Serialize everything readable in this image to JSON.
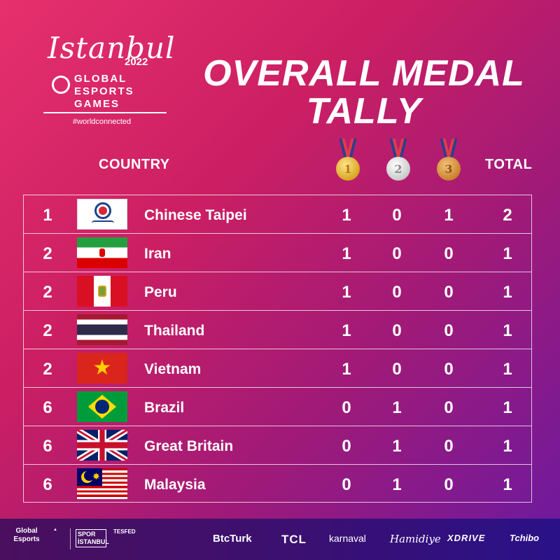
{
  "logo": {
    "script": "Istanbul",
    "year": "2022",
    "line1": "GLOBAL",
    "line2": "ESPORTS",
    "line3": "GAMES",
    "hashtag": "#worldconnected"
  },
  "title": {
    "line1": "OVERALL MEDAL",
    "line2": "TALLY"
  },
  "headers": {
    "country": "COUNTRY",
    "gold_icon": "gold-medal-icon",
    "silver_icon": "silver-medal-icon",
    "bronze_icon": "bronze-medal-icon",
    "gold_numeral": "1",
    "silver_numeral": "2",
    "bronze_numeral": "3",
    "total": "TOTAL"
  },
  "rows": [
    {
      "rank": "1",
      "flag": "chinese-taipei-flag",
      "country": "Chinese Taipei",
      "gold": "1",
      "silver": "0",
      "bronze": "1",
      "total": "2"
    },
    {
      "rank": "2",
      "flag": "iran-flag",
      "country": "Iran",
      "gold": "1",
      "silver": "0",
      "bronze": "0",
      "total": "1"
    },
    {
      "rank": "2",
      "flag": "peru-flag",
      "country": "Peru",
      "gold": "1",
      "silver": "0",
      "bronze": "0",
      "total": "1"
    },
    {
      "rank": "2",
      "flag": "thailand-flag",
      "country": "Thailand",
      "gold": "1",
      "silver": "0",
      "bronze": "0",
      "total": "1"
    },
    {
      "rank": "2",
      "flag": "vietnam-flag",
      "country": "Vietnam",
      "gold": "1",
      "silver": "0",
      "bronze": "0",
      "total": "1"
    },
    {
      "rank": "6",
      "flag": "brazil-flag",
      "country": "Brazil",
      "gold": "0",
      "silver": "1",
      "bronze": "0",
      "total": "1"
    },
    {
      "rank": "6",
      "flag": "great-britain-flag",
      "country": "Great Britain",
      "gold": "0",
      "silver": "1",
      "bronze": "0",
      "total": "1"
    },
    {
      "rank": "6",
      "flag": "malaysia-flag",
      "country": "Malaysia",
      "gold": "0",
      "silver": "1",
      "bronze": "0",
      "total": "1"
    }
  ],
  "sponsors": {
    "global_esports": "Global Esports",
    "spor_istanbul": "SPOR İSTANBUL",
    "tesfed": "TESFED",
    "btcturk": "BtcTurk",
    "tcl": "TCL",
    "karnaval": "karnaval",
    "hamidiye": "Hamidiye",
    "xdrive": "XDRIVE",
    "tchibo": "Tchibo"
  },
  "colors": {
    "background_start": "#e6306d",
    "background_end": "#6a1aa0",
    "gold": "#d9a520",
    "silver": "#c9c9c9",
    "bronze": "#c9822e"
  }
}
